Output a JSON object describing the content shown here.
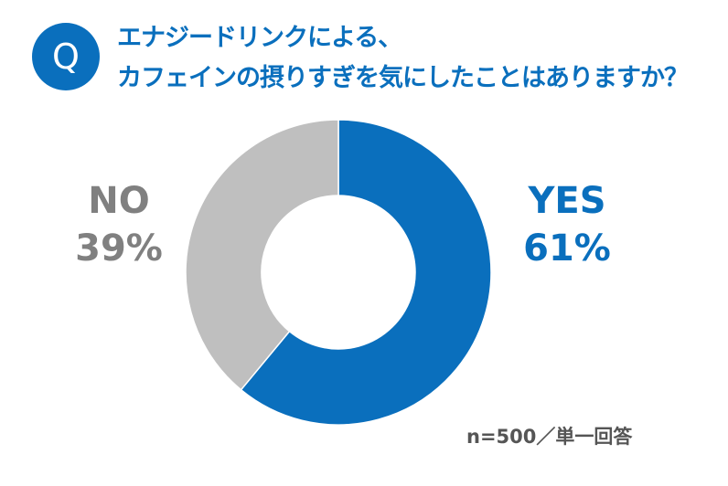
{
  "header": {
    "badge": "Q",
    "title_line1": "エナジードリンクによる、",
    "title_line2": "カフェインの摂りすぎを気にしたことはありますか？"
  },
  "labels": {
    "yes_name": "YES",
    "yes_value": "61%",
    "no_name": "NO",
    "no_value": "39%"
  },
  "note": "n=500／単一回答",
  "colors": {
    "yes": "#0a6fbd",
    "no": "#bfbfbf",
    "title": "#0a6fbd"
  },
  "chart_data": {
    "type": "pie",
    "subtype": "donut",
    "title": "エナジードリンクによる、カフェインの摂りすぎを気にしたことはありますか？",
    "categories": [
      "YES",
      "NO"
    ],
    "values": [
      61,
      39
    ],
    "unit": "%",
    "colors": [
      "#0a6fbd",
      "#bfbfbf"
    ],
    "start_angle": "12 o'clock, clockwise",
    "annotation": "n=500／単一回答",
    "legend": "none (direct labels: YES left-right outside)"
  }
}
